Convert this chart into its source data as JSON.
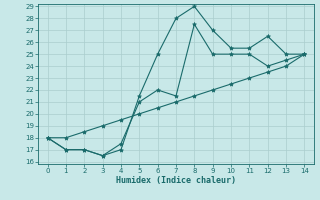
{
  "xlabel": "Humidex (Indice chaleur)",
  "x": [
    0,
    1,
    2,
    3,
    4,
    5,
    6,
    7,
    8,
    9,
    10,
    11,
    12,
    13,
    14
  ],
  "line1": [
    18,
    17,
    17,
    16.5,
    17,
    21.5,
    25,
    28,
    29,
    27,
    25.5,
    25.5,
    26.5,
    25,
    25
  ],
  "line2": [
    18,
    17,
    17,
    16.5,
    17.5,
    21,
    22,
    21.5,
    27.5,
    25,
    25,
    25,
    24,
    24.5,
    25
  ],
  "line3": [
    18,
    18,
    18.5,
    19,
    19.5,
    20,
    20.5,
    21,
    21.5,
    22,
    22.5,
    23,
    23.5,
    24,
    25
  ],
  "color": "#1a6b6b",
  "bg_color": "#c8e8e8",
  "grid_color": "#aacece",
  "ylim": [
    16,
    29
  ],
  "xlim": [
    -0.5,
    14.5
  ],
  "yticks": [
    16,
    17,
    18,
    19,
    20,
    21,
    22,
    23,
    24,
    25,
    26,
    27,
    28,
    29
  ],
  "xticks": [
    0,
    1,
    2,
    3,
    4,
    5,
    6,
    7,
    8,
    9,
    10,
    11,
    12,
    13,
    14
  ],
  "marker_size": 3,
  "line_width": 0.8,
  "tick_fontsize": 5,
  "xlabel_fontsize": 6
}
